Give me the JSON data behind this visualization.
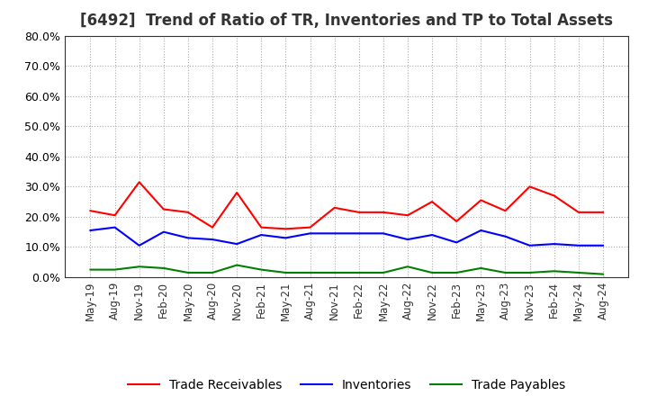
{
  "title": "[6492]  Trend of Ratio of TR, Inventories and TP to Total Assets",
  "title_fontsize": 12,
  "ylim": [
    0.0,
    0.8
  ],
  "yticks": [
    0.0,
    0.1,
    0.2,
    0.3,
    0.4,
    0.5,
    0.6,
    0.7,
    0.8
  ],
  "x_labels": [
    "May-19",
    "Aug-19",
    "Nov-19",
    "Feb-20",
    "May-20",
    "Aug-20",
    "Nov-20",
    "Feb-21",
    "May-21",
    "Aug-21",
    "Nov-21",
    "Feb-22",
    "May-22",
    "Aug-22",
    "Nov-22",
    "Feb-23",
    "May-23",
    "Aug-23",
    "Nov-23",
    "Feb-24",
    "May-24",
    "Aug-24"
  ],
  "trade_receivables": [
    0.22,
    0.205,
    0.315,
    0.225,
    0.215,
    0.165,
    0.28,
    0.165,
    0.16,
    0.165,
    0.23,
    0.215,
    0.215,
    0.205,
    0.25,
    0.185,
    0.255,
    0.22,
    0.3,
    0.27,
    0.215,
    0.215
  ],
  "inventories": [
    0.155,
    0.165,
    0.105,
    0.15,
    0.13,
    0.125,
    0.11,
    0.14,
    0.13,
    0.145,
    0.145,
    0.145,
    0.145,
    0.125,
    0.14,
    0.115,
    0.155,
    0.135,
    0.105,
    0.11,
    0.105,
    0.105
  ],
  "trade_payables": [
    0.025,
    0.025,
    0.035,
    0.03,
    0.015,
    0.015,
    0.04,
    0.025,
    0.015,
    0.015,
    0.015,
    0.015,
    0.015,
    0.035,
    0.015,
    0.015,
    0.03,
    0.015,
    0.015,
    0.02,
    0.015,
    0.01
  ],
  "tr_color": "#ff0000",
  "inv_color": "#0000ff",
  "tp_color": "#008000",
  "legend_labels": [
    "Trade Receivables",
    "Inventories",
    "Trade Payables"
  ],
  "grid_color": "#aaaaaa",
  "background_color": "#ffffff",
  "figsize": [
    7.2,
    4.4
  ],
  "dpi": 100
}
